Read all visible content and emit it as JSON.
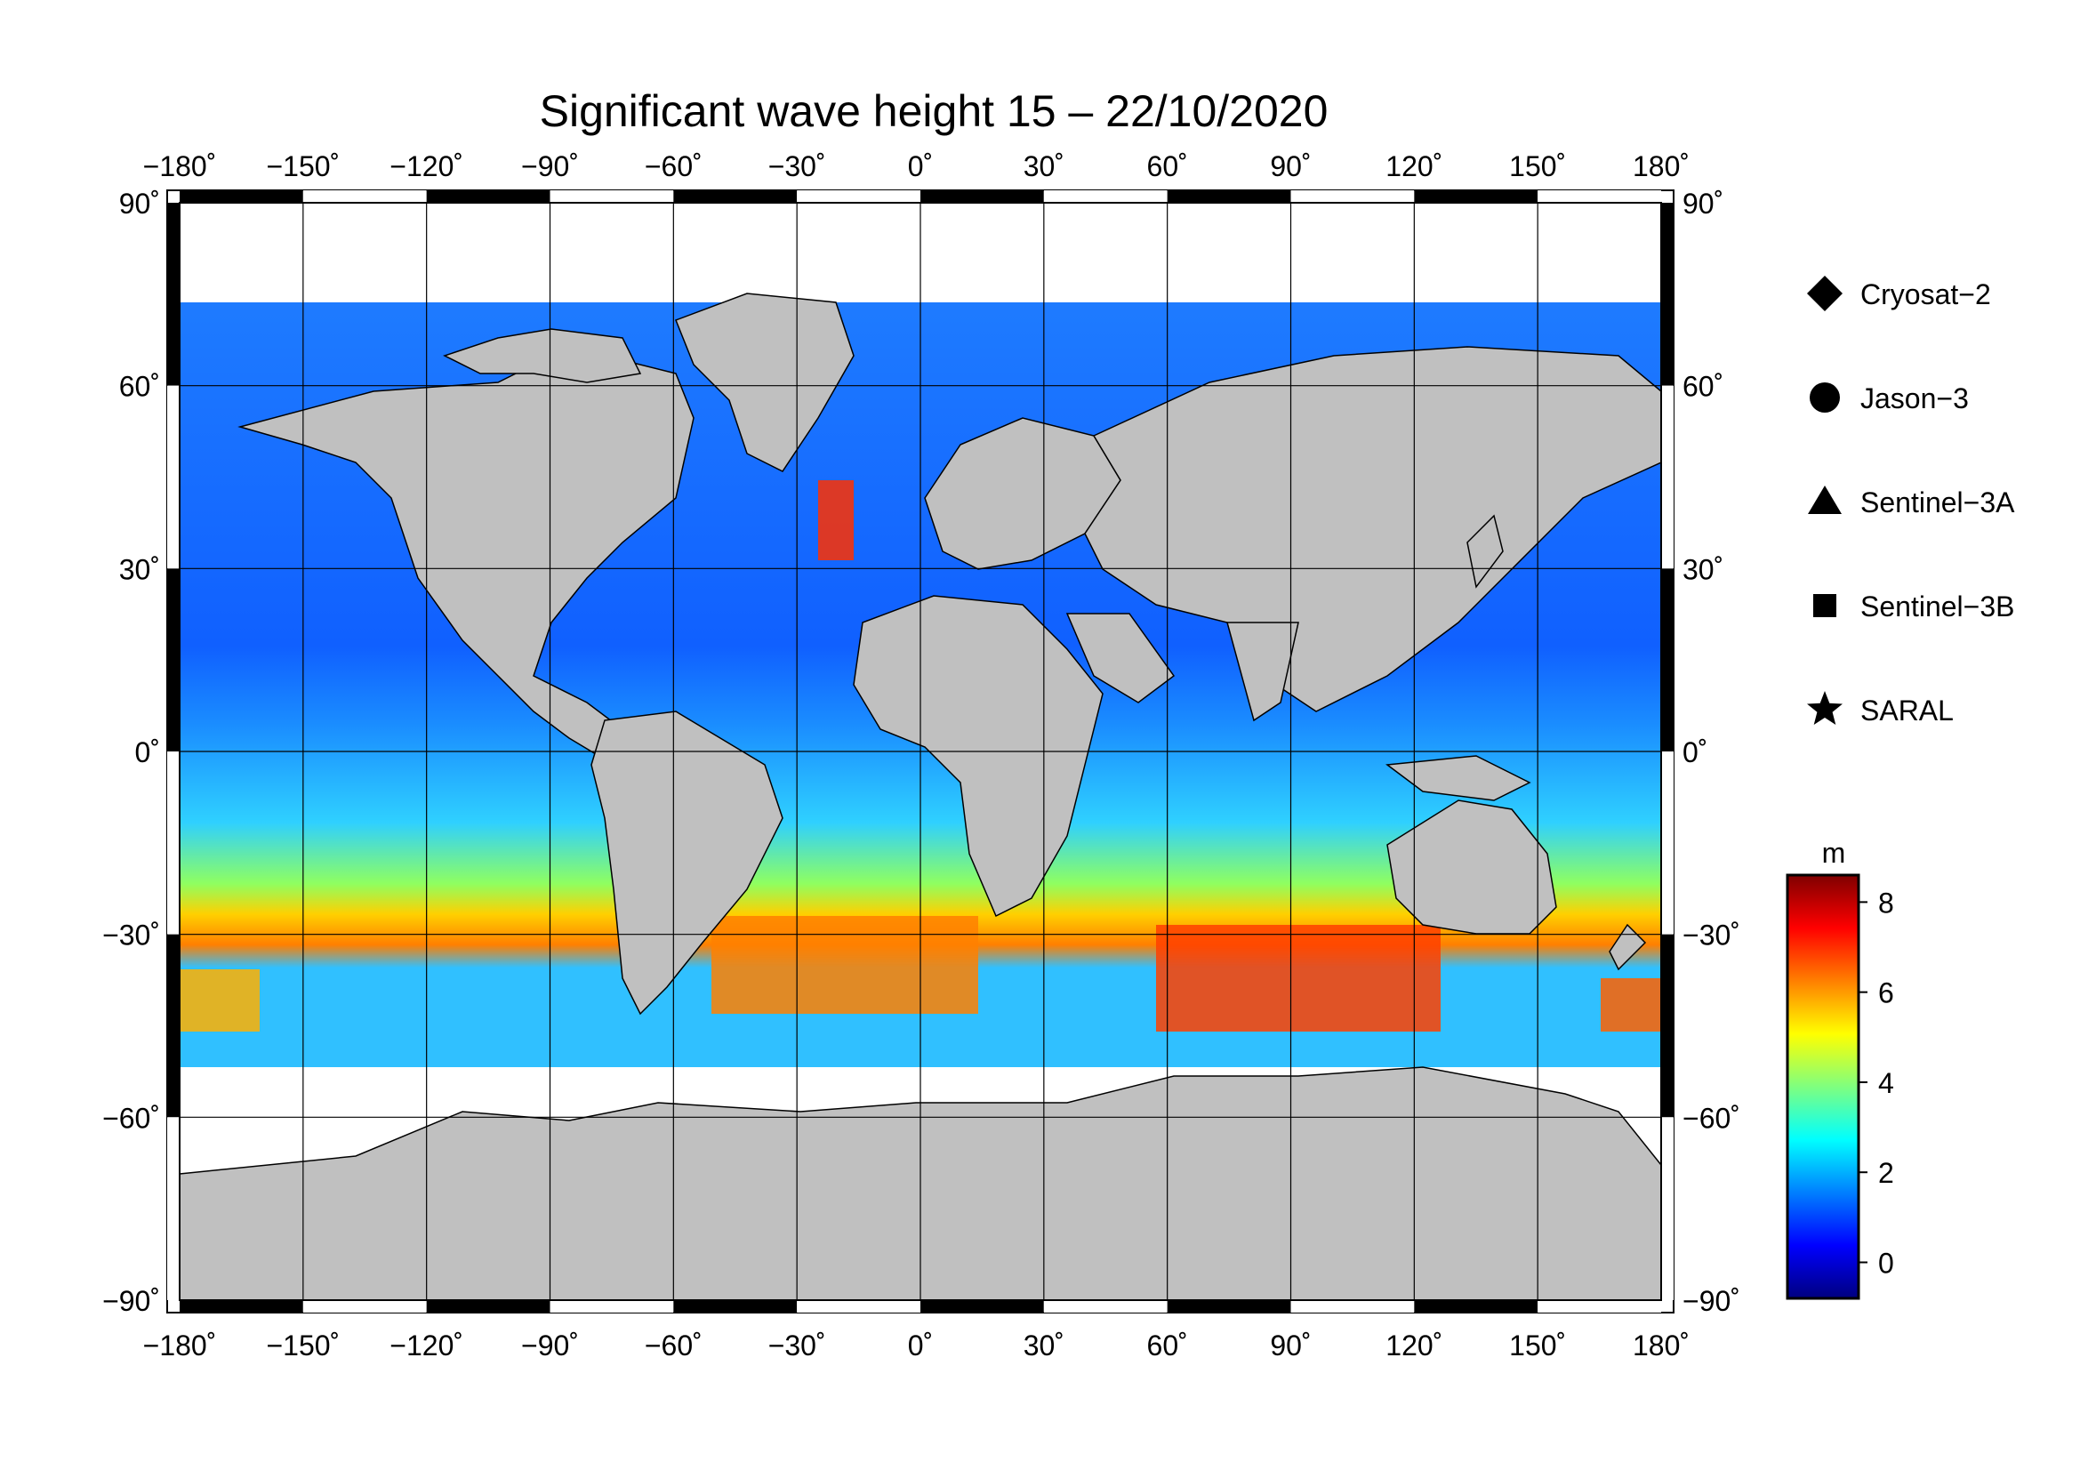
{
  "title": "Significant wave height 15 – 22/10/2020",
  "map": {
    "projection": "equirectangular",
    "lon_range": [
      -180,
      180
    ],
    "lat_range": [
      -90,
      90
    ],
    "lon_ticks": [
      "−180˚",
      "−150˚",
      "−120˚",
      "−90˚",
      "−60˚",
      "−30˚",
      "0˚",
      "30˚",
      "60˚",
      "90˚",
      "120˚",
      "150˚",
      "180˚"
    ],
    "lat_ticks": [
      "90˚",
      "60˚",
      "30˚",
      "0˚",
      "−30˚",
      "−60˚",
      "−90˚"
    ],
    "grid": true,
    "land_color": "#c0c0c0",
    "ice_color": "#ffffff"
  },
  "legend": {
    "placement": "right",
    "items": [
      {
        "label": "Cryosat−2",
        "marker": "diamond"
      },
      {
        "label": "Jason−3",
        "marker": "circle"
      },
      {
        "label": "Sentinel−3A",
        "marker": "triangle"
      },
      {
        "label": "Sentinel−3B",
        "marker": "square"
      },
      {
        "label": "SARAL",
        "marker": "star"
      }
    ]
  },
  "colorbar": {
    "unit": "m",
    "range": [
      -0.8,
      8.6
    ],
    "ticks": [
      {
        "value": 0,
        "label": "0"
      },
      {
        "value": 2,
        "label": "2"
      },
      {
        "value": 4,
        "label": "4"
      },
      {
        "value": 6,
        "label": "6"
      },
      {
        "value": 8,
        "label": "8"
      }
    ],
    "colors": [
      "#00007f",
      "#0000ff",
      "#007fff",
      "#00ffff",
      "#7fff7f",
      "#ffff00",
      "#ff7f00",
      "#ff0000",
      "#7f0000"
    ]
  }
}
